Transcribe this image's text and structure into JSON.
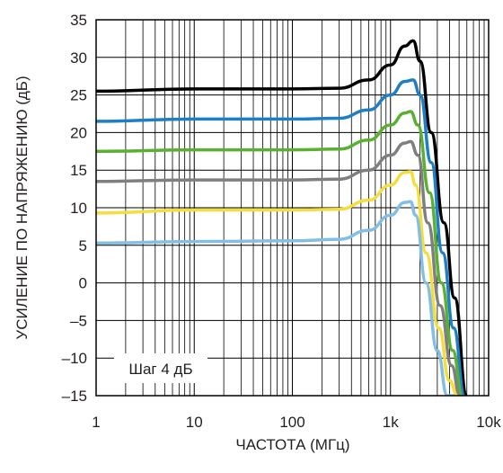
{
  "chart_data": {
    "type": "line",
    "xscale": "log",
    "xlim": [
      1,
      10000
    ],
    "ylim": [
      -15,
      35
    ],
    "xlabel": "ЧАСТОТА (МГц)",
    "ylabel": "УСИЛЕНИЕ ПО НАПРЯЖЕНИЮ (дБ)",
    "x_ticks": [
      1,
      10,
      100,
      1000,
      10000
    ],
    "x_tick_labels": [
      "1",
      "10",
      "100",
      "1k",
      "10k"
    ],
    "y_ticks": [
      35,
      30,
      25,
      20,
      15,
      10,
      5,
      0,
      -5,
      -10,
      -15
    ],
    "y_tick_labels": [
      "35",
      "30",
      "25",
      "20",
      "15",
      "10",
      "5",
      "0",
      "–5",
      "–10",
      "–15"
    ],
    "grid": "log-minor",
    "annotation": "Шаг 4 дБ",
    "series": [
      {
        "color": "#000000",
        "x": [
          1,
          10,
          100,
          300,
          600,
          1000,
          1400,
          1700,
          2000,
          2600,
          3500,
          4500,
          6000
        ],
        "y": [
          25.5,
          25.8,
          25.8,
          25.9,
          27.0,
          29.0,
          31.5,
          32.2,
          29.5,
          20,
          8,
          -2,
          -15
        ]
      },
      {
        "color": "#1e7fc6",
        "x": [
          1,
          10,
          100,
          300,
          600,
          1000,
          1400,
          1700,
          2000,
          2600,
          3400,
          4400,
          5700
        ],
        "y": [
          21.5,
          21.8,
          21.8,
          21.9,
          23.0,
          25.0,
          26.8,
          27.0,
          25.0,
          16,
          4,
          -6,
          -15
        ]
      },
      {
        "color": "#5ab031",
        "x": [
          1,
          10,
          100,
          300,
          600,
          1000,
          1400,
          1600,
          1900,
          2500,
          3300,
          4300,
          5400
        ],
        "y": [
          17.5,
          17.7,
          17.7,
          17.8,
          19.0,
          21.0,
          22.6,
          22.8,
          21.0,
          12,
          0,
          -9,
          -15
        ]
      },
      {
        "color": "#7f7f7f",
        "x": [
          1,
          10,
          100,
          300,
          600,
          1000,
          1400,
          1600,
          1900,
          2400,
          3200,
          4200,
          5100
        ],
        "y": [
          13.5,
          13.7,
          13.7,
          13.8,
          15.0,
          17.0,
          18.6,
          18.8,
          17.0,
          8,
          -3,
          -11,
          -15
        ]
      },
      {
        "color": "#f4dd3f",
        "x": [
          1,
          10,
          100,
          300,
          600,
          1000,
          1400,
          1600,
          1800,
          2300,
          3100,
          4000,
          4800
        ],
        "y": [
          9.3,
          9.7,
          9.7,
          9.8,
          11.0,
          13.0,
          14.7,
          14.8,
          13.0,
          4,
          -6,
          -13,
          -15
        ]
      },
      {
        "color": "#83bee5",
        "x": [
          1,
          10,
          100,
          300,
          600,
          1000,
          1400,
          1600,
          1800,
          2300,
          3000,
          3800,
          4500
        ],
        "y": [
          5.3,
          5.5,
          5.6,
          5.8,
          7.0,
          9.0,
          10.7,
          10.8,
          9.0,
          0,
          -9,
          -15,
          -15
        ]
      }
    ]
  }
}
